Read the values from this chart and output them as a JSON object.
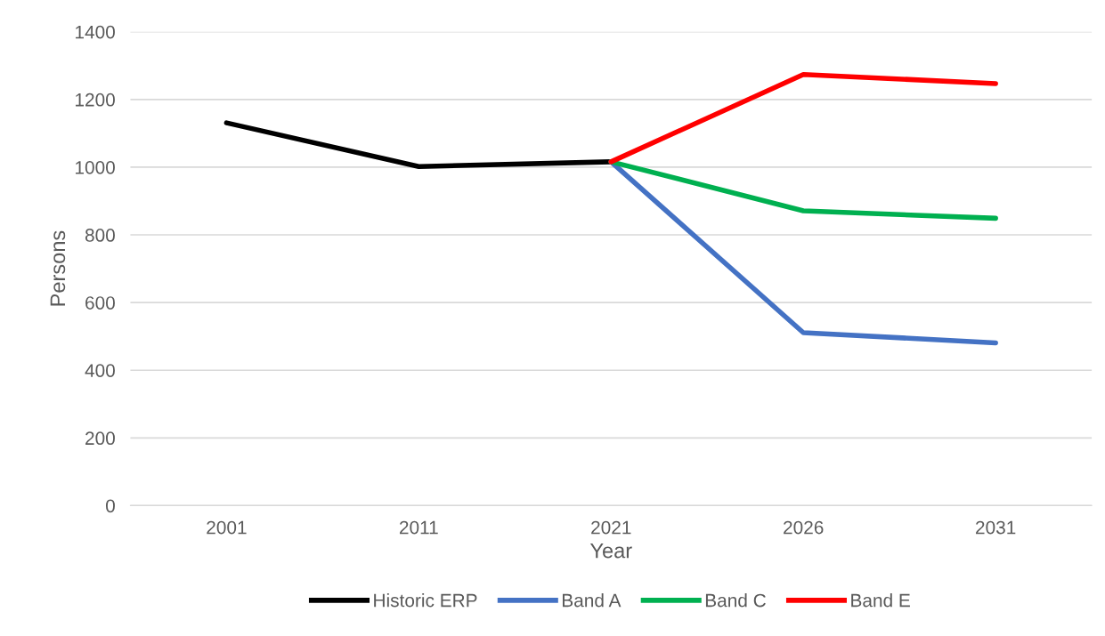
{
  "chart_data": {
    "type": "line",
    "xlabel": "Year",
    "ylabel": "Persons",
    "categories": [
      "2001",
      "2011",
      "2021",
      "2026",
      "2031"
    ],
    "series": [
      {
        "name": "Historic ERP",
        "color": "#000000",
        "values": [
          1131,
          1002,
          1016,
          null,
          null
        ]
      },
      {
        "name": "Band A",
        "color": "#4472c4",
        "values": [
          null,
          null,
          1016,
          511,
          481
        ]
      },
      {
        "name": "Band C",
        "color": "#00b050",
        "values": [
          null,
          null,
          1016,
          871,
          849
        ]
      },
      {
        "name": "Band E",
        "color": "#ff0000",
        "values": [
          null,
          null,
          1016,
          1274,
          1247
        ]
      }
    ],
    "ylim": [
      0,
      1400
    ],
    "yticks": [
      0,
      200,
      400,
      600,
      800,
      1000,
      1200,
      1400
    ],
    "grid": "y",
    "legend": "bottom",
    "marker": "none",
    "line_style": "solid"
  }
}
